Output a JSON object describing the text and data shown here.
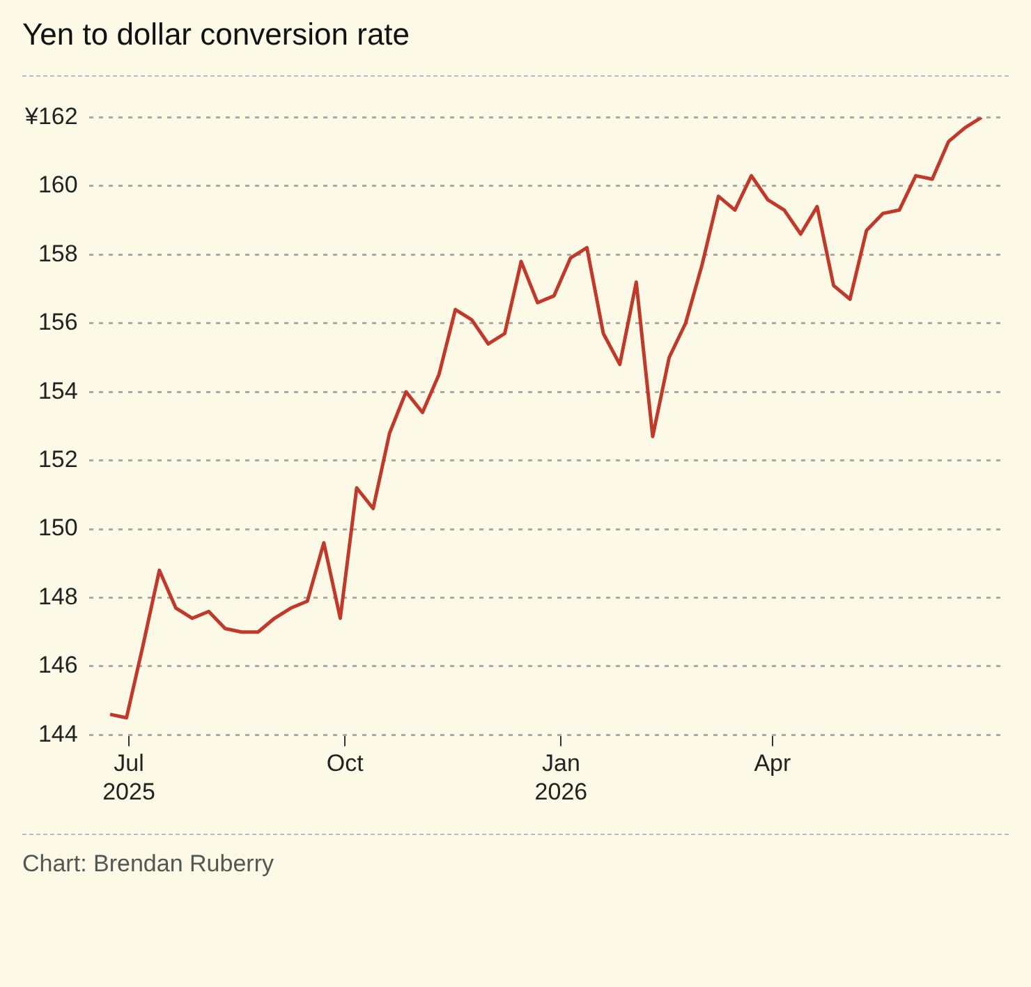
{
  "chart_data": {
    "type": "line",
    "title": "Yen to dollar conversion rate",
    "x": [
      "2025-06-23",
      "2025-06-30",
      "2025-07-07",
      "2025-07-14",
      "2025-07-21",
      "2025-07-28",
      "2025-08-04",
      "2025-08-11",
      "2025-08-18",
      "2025-08-25",
      "2025-09-01",
      "2025-09-08",
      "2025-09-15",
      "2025-09-22",
      "2025-09-29",
      "2025-10-06",
      "2025-10-13",
      "2025-10-20",
      "2025-10-27",
      "2025-11-03",
      "2025-11-10",
      "2025-11-17",
      "2025-11-24",
      "2025-12-01",
      "2025-12-08",
      "2025-12-15",
      "2025-12-22",
      "2025-12-29",
      "2026-01-05",
      "2026-01-12",
      "2026-01-19",
      "2026-01-26",
      "2026-02-02",
      "2026-02-09",
      "2026-02-16",
      "2026-02-23",
      "2026-03-02",
      "2026-03-09",
      "2026-03-16",
      "2026-03-23",
      "2026-03-30",
      "2026-04-06",
      "2026-04-13",
      "2026-04-20",
      "2026-04-27",
      "2026-05-04",
      "2026-05-11",
      "2026-05-18",
      "2026-05-25",
      "2026-06-01",
      "2026-06-08",
      "2026-06-15",
      "2026-06-22",
      "2026-06-29"
    ],
    "series": [
      {
        "color": "#c0392b",
        "values": [
          144.6,
          144.5,
          146.6,
          148.8,
          147.7,
          147.4,
          147.6,
          147.1,
          147.0,
          147.0,
          147.4,
          147.7,
          147.9,
          149.6,
          147.4,
          151.2,
          150.6,
          152.8,
          154.0,
          153.4,
          154.5,
          156.4,
          156.1,
          155.4,
          155.7,
          157.8,
          156.6,
          156.8,
          157.9,
          158.2,
          155.7,
          154.8,
          157.2,
          152.7,
          155.0,
          156.0,
          157.7,
          159.7,
          159.3,
          160.3,
          159.6,
          159.3,
          158.6,
          159.4,
          157.1,
          156.7,
          158.7,
          159.2,
          159.3,
          160.3,
          160.2,
          161.3,
          161.7,
          162.0
        ]
      }
    ],
    "xlim": [
      "2025-06-14",
      "2026-07-07"
    ],
    "xticks": [
      {
        "value": "2025-07-01",
        "label": "Jul\n2025"
      },
      {
        "value": "2025-10-01",
        "label": "Oct"
      },
      {
        "value": "2026-01-01",
        "label": "Jan\n2026"
      },
      {
        "value": "2026-04-01",
        "label": "Apr"
      }
    ],
    "ylim": [
      144,
      162
    ],
    "yticks": [
      144,
      146,
      148,
      150,
      152,
      154,
      156,
      158,
      160,
      {
        "value": 162,
        "label": "¥162"
      }
    ],
    "grid": "y",
    "legend": false,
    "marker": "none",
    "line_style": "solid",
    "annotations": [
      "Chart: Brendan Ruberry"
    ]
  }
}
